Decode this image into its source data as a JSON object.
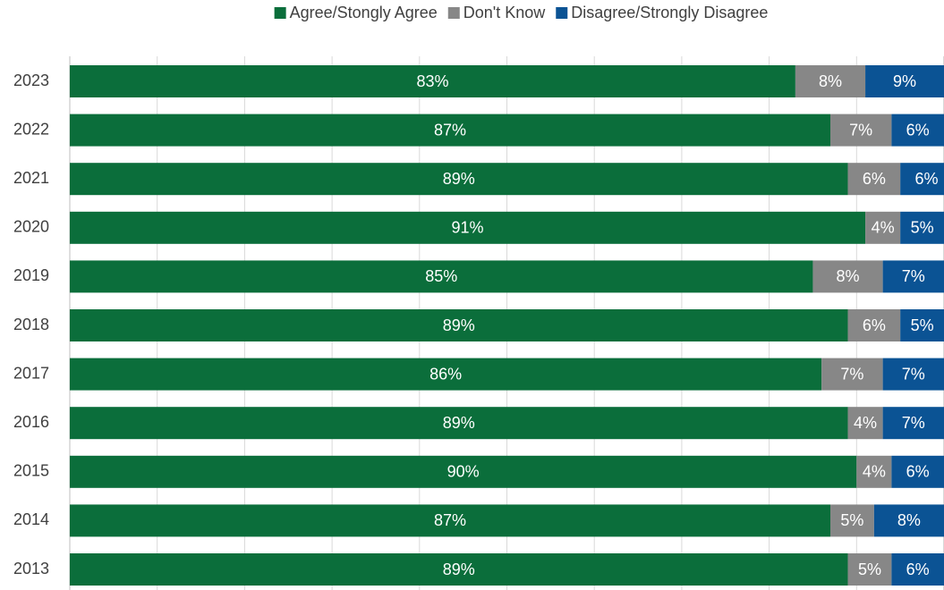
{
  "chart_data": {
    "type": "stacked_bar_horizontal",
    "categories": [
      "2023",
      "2022",
      "2021",
      "2020",
      "2019",
      "2018",
      "2017",
      "2016",
      "2015",
      "2014",
      "2013"
    ],
    "series": [
      {
        "name": "Agree/Stongly Agree",
        "color": "#0b6e3b",
        "values": [
          83,
          87,
          89,
          91,
          85,
          89,
          86,
          89,
          90,
          87,
          89
        ],
        "value_labels": [
          "83%",
          "87%",
          "89%",
          "91%",
          "85%",
          "89%",
          "86%",
          "89%",
          "90%",
          "87%",
          "89%"
        ]
      },
      {
        "name": "Don't Know",
        "color": "#878787",
        "values": [
          8,
          7,
          6,
          4,
          8,
          6,
          7,
          4,
          4,
          5,
          5
        ],
        "value_labels": [
          "8%",
          "7%",
          "6%",
          "4%",
          "8%",
          "6%",
          "7%",
          "4%",
          "4%",
          "5%",
          "5%"
        ]
      },
      {
        "name": "Disagree/Strongly Disagree",
        "color": "#0b5394",
        "values": [
          9,
          6,
          6,
          5,
          7,
          5,
          7,
          7,
          6,
          8,
          6
        ],
        "value_labels": [
          "9%",
          "6%",
          "6%",
          "5%",
          "7%",
          "5%",
          "7%",
          "7%",
          "6%",
          "8%",
          "6%"
        ]
      }
    ],
    "xlim": [
      0,
      100
    ],
    "xticks": [
      0,
      10,
      20,
      30,
      40,
      50,
      60,
      70,
      80,
      90,
      100
    ],
    "grid": true,
    "legend": "top"
  }
}
